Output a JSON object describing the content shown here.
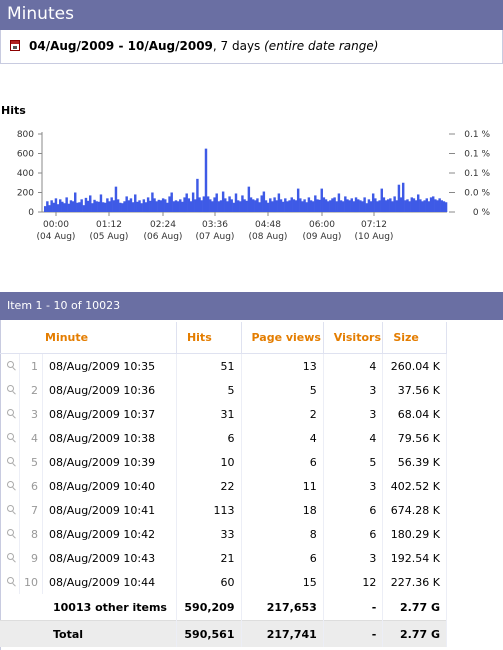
{
  "header": {
    "title": "Minutes"
  },
  "date_range": {
    "range": "04/Aug/2009 - 10/Aug/2009",
    "days": ", 7 days ",
    "note": "(entire date range)"
  },
  "chart_data": {
    "type": "bar",
    "title": "Hits",
    "ylim": [
      0,
      800
    ],
    "y_ticks": [
      "800",
      "600",
      "400",
      "200",
      "0"
    ],
    "y2_ticks": [
      "0.1 %",
      "0.1 %",
      "0.1 %",
      "0.0 %",
      "0 %"
    ],
    "x_ticks": [
      {
        "time": "00:00",
        "date": "(04 Aug)"
      },
      {
        "time": "01:12",
        "date": "(05 Aug)"
      },
      {
        "time": "02:24",
        "date": "(06 Aug)"
      },
      {
        "time": "03:36",
        "date": "(07 Aug)"
      },
      {
        "time": "04:48",
        "date": "(08 Aug)"
      },
      {
        "time": "06:00",
        "date": "(09 Aug)"
      },
      {
        "time": "07:12",
        "date": "(10 Aug)"
      }
    ],
    "series": [
      {
        "color": "#3e5ae6",
        "values": [
          60,
          110,
          70,
          120,
          95,
          140,
          80,
          130,
          105,
          90,
          150,
          85,
          120,
          110,
          200,
          95,
          100,
          130,
          70,
          145,
          115,
          170,
          90,
          125,
          110,
          105,
          180,
          100,
          95,
          140,
          110,
          150,
          120,
          260,
          130,
          95,
          90,
          110,
          160,
          120,
          140,
          100,
          180,
          105,
          120,
          90,
          130,
          100,
          150,
          115,
          200,
          140,
          110,
          125,
          120,
          140,
          130,
          95,
          160,
          200,
          110,
          120,
          110,
          130,
          105,
          150,
          190,
          140,
          110,
          200,
          130,
          340,
          150,
          120,
          160,
          650,
          160,
          130,
          110,
          150,
          190,
          110,
          120,
          210,
          140,
          110,
          160,
          130,
          95,
          190,
          120,
          110,
          170,
          130,
          115,
          260,
          150,
          130,
          120,
          140,
          100,
          170,
          210,
          120,
          95,
          140,
          110,
          150,
          120,
          190,
          130,
          105,
          140,
          110,
          120,
          150,
          130,
          120,
          240,
          140,
          110,
          130,
          100,
          150,
          120,
          110,
          170,
          130,
          125,
          240,
          150,
          130,
          110,
          120,
          140,
          150,
          110,
          190,
          120,
          110,
          160,
          130,
          120,
          140,
          110,
          150,
          130,
          120,
          110,
          150,
          90,
          130,
          110,
          190,
          140,
          110,
          120,
          240,
          150,
          120,
          130,
          140,
          110,
          160,
          120,
          280,
          150,
          300,
          120,
          130,
          110,
          150,
          140,
          120,
          180,
          130,
          110,
          120,
          140,
          110,
          150,
          160,
          130,
          120,
          140,
          120,
          110,
          100
        ]
      }
    ]
  },
  "items_bar": {
    "label": "Item 1 - 10 of 10023"
  },
  "table": {
    "headers": {
      "minute": "Minute",
      "hits": "Hits",
      "page_views": "Page views",
      "visitors": "Visitors",
      "size": "Size"
    },
    "rows": [
      {
        "idx": "1",
        "minute": "08/Aug/2009 10:35",
        "hits": "51",
        "page_views": "13",
        "visitors": "4",
        "size": "260.04 K"
      },
      {
        "idx": "2",
        "minute": "08/Aug/2009 10:36",
        "hits": "5",
        "page_views": "5",
        "visitors": "3",
        "size": "37.56 K"
      },
      {
        "idx": "3",
        "minute": "08/Aug/2009 10:37",
        "hits": "31",
        "page_views": "2",
        "visitors": "3",
        "size": "68.04 K"
      },
      {
        "idx": "4",
        "minute": "08/Aug/2009 10:38",
        "hits": "6",
        "page_views": "4",
        "visitors": "4",
        "size": "79.56 K"
      },
      {
        "idx": "5",
        "minute": "08/Aug/2009 10:39",
        "hits": "10",
        "page_views": "6",
        "visitors": "5",
        "size": "56.39 K"
      },
      {
        "idx": "6",
        "minute": "08/Aug/2009 10:40",
        "hits": "22",
        "page_views": "11",
        "visitors": "3",
        "size": "402.52 K"
      },
      {
        "idx": "7",
        "minute": "08/Aug/2009 10:41",
        "hits": "113",
        "page_views": "18",
        "visitors": "6",
        "size": "674.28 K"
      },
      {
        "idx": "8",
        "minute": "08/Aug/2009 10:42",
        "hits": "33",
        "page_views": "8",
        "visitors": "6",
        "size": "180.29 K"
      },
      {
        "idx": "9",
        "minute": "08/Aug/2009 10:43",
        "hits": "21",
        "page_views": "6",
        "visitors": "3",
        "size": "192.54 K"
      },
      {
        "idx": "10",
        "minute": "08/Aug/2009 10:44",
        "hits": "60",
        "page_views": "15",
        "visitors": "12",
        "size": "227.36 K"
      }
    ],
    "other": {
      "label": "10013 other items",
      "hits": "590,209",
      "page_views": "217,653",
      "visitors": "-",
      "size": "2.77 G"
    },
    "total": {
      "label": "Total",
      "hits": "590,561",
      "page_views": "217,741",
      "visitors": "-",
      "size": "2.77 G"
    }
  }
}
